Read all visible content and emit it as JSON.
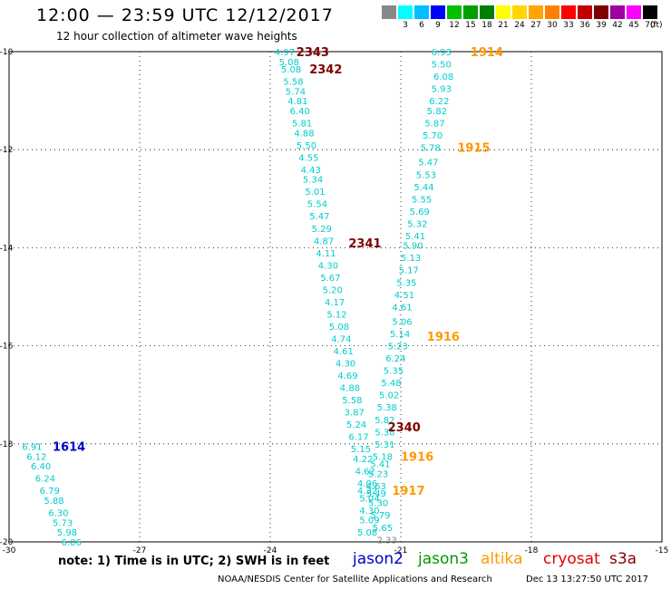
{
  "header": {
    "title": "12:00 — 23:59 UTC 12/12/2017",
    "subtitle": "12 hour collection of altimeter wave heights"
  },
  "legend": {
    "unit": "(ft)",
    "bins": [
      {
        "label": "",
        "color": "#888888"
      },
      {
        "label": "3",
        "color": "#00ffff"
      },
      {
        "label": "6",
        "color": "#00bfff"
      },
      {
        "label": "9",
        "color": "#0000ff"
      },
      {
        "label": "12",
        "color": "#00c000"
      },
      {
        "label": "15",
        "color": "#00a000"
      },
      {
        "label": "18",
        "color": "#008000"
      },
      {
        "label": "21",
        "color": "#ffff00"
      },
      {
        "label": "24",
        "color": "#ffd700"
      },
      {
        "label": "27",
        "color": "#ffa500"
      },
      {
        "label": "30",
        "color": "#ff8000"
      },
      {
        "label": "33",
        "color": "#ff0000"
      },
      {
        "label": "36",
        "color": "#c00000"
      },
      {
        "label": "39",
        "color": "#800000"
      },
      {
        "label": "42",
        "color": "#a000a0"
      },
      {
        "label": "45",
        "color": "#ff00ff"
      },
      {
        "label": "70",
        "color": "#000000"
      }
    ]
  },
  "axes": {
    "lat_labels": [
      "-10",
      "-12",
      "-14",
      "-16",
      "-18",
      "-20"
    ],
    "lon_labels": [
      "-30",
      "-27",
      "-24",
      "-21",
      "-18",
      "-15"
    ],
    "grid": true
  },
  "footer": {
    "note": "note: 1) Time is in UTC; 2) SWH is in feet",
    "satellites": [
      {
        "name": "jason2",
        "color": "#0000cc"
      },
      {
        "name": "jason3",
        "color": "#009900"
      },
      {
        "name": "altika",
        "color": "#ff9900"
      },
      {
        "name": "cryosat",
        "color": "#dd0000"
      },
      {
        "name": "s3a",
        "color": "#880000"
      }
    ],
    "credit": "NOAA/NESDIS Center for Satellite Applications and Research",
    "timestamp": "Dec 13 13:27:50 UTC 2017"
  },
  "chart_data": {
    "type": "map",
    "xlim": [
      -30,
      -15
    ],
    "ylim": [
      -20,
      -10
    ],
    "track_labels": [
      {
        "text": "2343",
        "lon": -23.4,
        "lat": -10.0,
        "color": "#800000"
      },
      {
        "text": "2342",
        "lon": -23.1,
        "lat": -10.35,
        "color": "#800000"
      },
      {
        "text": "2341",
        "lon": -22.2,
        "lat": -13.9,
        "color": "#800000"
      },
      {
        "text": "2340",
        "lon": -21.3,
        "lat": -17.65,
        "color": "#800000"
      },
      {
        "text": "1914",
        "lon": -19.4,
        "lat": -10.0,
        "color": "#ff9900"
      },
      {
        "text": "1915",
        "lon": -19.7,
        "lat": -11.95,
        "color": "#ff9900"
      },
      {
        "text": "1916",
        "lon": -20.4,
        "lat": -15.8,
        "color": "#ff9900"
      },
      {
        "text": "1916",
        "lon": -21.0,
        "lat": -18.25,
        "color": "#ff9900"
      },
      {
        "text": "1917",
        "lon": -21.2,
        "lat": -18.95,
        "color": "#ff9900"
      },
      {
        "text": "1614",
        "lon": -29.0,
        "lat": -18.05,
        "color": "#0000cc"
      }
    ],
    "points": [
      {
        "v": "4.97",
        "lon": -23.9,
        "lat": -10.0,
        "color": "#00cccc"
      },
      {
        "v": "5.08",
        "lon": -23.8,
        "lat": -10.2,
        "color": "#00cccc"
      },
      {
        "v": "5.08",
        "lon": -23.75,
        "lat": -10.35,
        "color": "#00cccc"
      },
      {
        "v": "5.58",
        "lon": -23.7,
        "lat": -10.6,
        "color": "#00cccc"
      },
      {
        "v": "5.74",
        "lon": -23.65,
        "lat": -10.8,
        "color": "#00cccc"
      },
      {
        "v": "4.81",
        "lon": -23.6,
        "lat": -11.0,
        "color": "#00cccc"
      },
      {
        "v": "6.40",
        "lon": -23.55,
        "lat": -11.2,
        "color": "#00cccc"
      },
      {
        "v": "5.81",
        "lon": -23.5,
        "lat": -11.45,
        "color": "#00cccc"
      },
      {
        "v": "4.88",
        "lon": -23.45,
        "lat": -11.65,
        "color": "#00cccc"
      },
      {
        "v": "5.50",
        "lon": -23.4,
        "lat": -11.9,
        "color": "#00cccc"
      },
      {
        "v": "4.55",
        "lon": -23.35,
        "lat": -12.15,
        "color": "#00cccc"
      },
      {
        "v": "4.43",
        "lon": -23.3,
        "lat": -12.4,
        "color": "#00cccc"
      },
      {
        "v": "5.34",
        "lon": -23.25,
        "lat": -12.6,
        "color": "#00cccc"
      },
      {
        "v": "5.01",
        "lon": -23.2,
        "lat": -12.85,
        "color": "#00cccc"
      },
      {
        "v": "5.54",
        "lon": -23.15,
        "lat": -13.1,
        "color": "#00cccc"
      },
      {
        "v": "5.47",
        "lon": -23.1,
        "lat": -13.35,
        "color": "#00cccc"
      },
      {
        "v": "5.29",
        "lon": -23.05,
        "lat": -13.6,
        "color": "#00cccc"
      },
      {
        "v": "4.87",
        "lon": -23.0,
        "lat": -13.85,
        "color": "#00cccc"
      },
      {
        "v": "4.11",
        "lon": -22.95,
        "lat": -14.1,
        "color": "#00cccc"
      },
      {
        "v": "4.30",
        "lon": -22.9,
        "lat": -14.35,
        "color": "#00cccc"
      },
      {
        "v": "5.67",
        "lon": -22.85,
        "lat": -14.6,
        "color": "#00cccc"
      },
      {
        "v": "5.20",
        "lon": -22.8,
        "lat": -14.85,
        "color": "#00cccc"
      },
      {
        "v": "4.17",
        "lon": -22.75,
        "lat": -15.1,
        "color": "#00cccc"
      },
      {
        "v": "5.12",
        "lon": -22.7,
        "lat": -15.35,
        "color": "#00cccc"
      },
      {
        "v": "5.08",
        "lon": -22.65,
        "lat": -15.6,
        "color": "#00cccc"
      },
      {
        "v": "4.74",
        "lon": -22.6,
        "lat": -15.85,
        "color": "#00cccc"
      },
      {
        "v": "4.61",
        "lon": -22.55,
        "lat": -16.1,
        "color": "#00cccc"
      },
      {
        "v": "4.30",
        "lon": -22.5,
        "lat": -16.35,
        "color": "#00cccc"
      },
      {
        "v": "4.69",
        "lon": -22.45,
        "lat": -16.6,
        "color": "#00cccc"
      },
      {
        "v": "4.88",
        "lon": -22.4,
        "lat": -16.85,
        "color": "#00cccc"
      },
      {
        "v": "5.58",
        "lon": -22.35,
        "lat": -17.1,
        "color": "#00cccc"
      },
      {
        "v": "3.87",
        "lon": -22.3,
        "lat": -17.35,
        "color": "#00cccc"
      },
      {
        "v": "5.24",
        "lon": -22.25,
        "lat": -17.6,
        "color": "#00cccc"
      },
      {
        "v": "6.17",
        "lon": -22.2,
        "lat": -17.85,
        "color": "#00cccc"
      },
      {
        "v": "5.15",
        "lon": -22.15,
        "lat": -18.1,
        "color": "#00cccc"
      },
      {
        "v": "4.22",
        "lon": -22.1,
        "lat": -18.3,
        "color": "#00cccc"
      },
      {
        "v": "4.62",
        "lon": -22.05,
        "lat": -18.55,
        "color": "#00cccc"
      },
      {
        "v": "4.06",
        "lon": -22.0,
        "lat": -18.8,
        "color": "#00cccc"
      },
      {
        "v": "4.32",
        "lon": -22.0,
        "lat": -18.95,
        "color": "#00cccc"
      },
      {
        "v": "5.04",
        "lon": -21.95,
        "lat": -19.1,
        "color": "#00cccc"
      },
      {
        "v": "4.30",
        "lon": -21.95,
        "lat": -19.35,
        "color": "#00cccc"
      },
      {
        "v": "5.09",
        "lon": -21.95,
        "lat": -19.55,
        "color": "#00cccc"
      },
      {
        "v": "5.08",
        "lon": -22.0,
        "lat": -19.8,
        "color": "#00cccc"
      },
      {
        "v": "6.93",
        "lon": -20.3,
        "lat": -10.0,
        "color": "#00cccc"
      },
      {
        "v": "5.50",
        "lon": -20.3,
        "lat": -10.25,
        "color": "#00cccc"
      },
      {
        "v": "6.08",
        "lon": -20.25,
        "lat": -10.5,
        "color": "#00cccc"
      },
      {
        "v": "5.93",
        "lon": -20.3,
        "lat": -10.75,
        "color": "#00cccc"
      },
      {
        "v": "6.22",
        "lon": -20.35,
        "lat": -11.0,
        "color": "#00cccc"
      },
      {
        "v": "5.82",
        "lon": -20.4,
        "lat": -11.2,
        "color": "#00cccc"
      },
      {
        "v": "5.87",
        "lon": -20.45,
        "lat": -11.45,
        "color": "#00cccc"
      },
      {
        "v": "5.70",
        "lon": -20.5,
        "lat": -11.7,
        "color": "#00cccc"
      },
      {
        "v": "5.78",
        "lon": -20.55,
        "lat": -11.95,
        "color": "#00cccc"
      },
      {
        "v": "5.47",
        "lon": -20.6,
        "lat": -12.25,
        "color": "#00cccc"
      },
      {
        "v": "5.53",
        "lon": -20.65,
        "lat": -12.5,
        "color": "#00cccc"
      },
      {
        "v": "5.44",
        "lon": -20.7,
        "lat": -12.75,
        "color": "#00cccc"
      },
      {
        "v": "5.55",
        "lon": -20.75,
        "lat": -13.0,
        "color": "#00cccc"
      },
      {
        "v": "5.69",
        "lon": -20.8,
        "lat": -13.25,
        "color": "#00cccc"
      },
      {
        "v": "5.32",
        "lon": -20.85,
        "lat": -13.5,
        "color": "#00cccc"
      },
      {
        "v": "5.41",
        "lon": -20.9,
        "lat": -13.75,
        "color": "#00cccc"
      },
      {
        "v": "5.90",
        "lon": -20.95,
        "lat": -13.95,
        "color": "#00cccc"
      },
      {
        "v": "5.13",
        "lon": -21.0,
        "lat": -14.2,
        "color": "#00cccc"
      },
      {
        "v": "5.17",
        "lon": -21.05,
        "lat": -14.45,
        "color": "#00cccc"
      },
      {
        "v": "5.35",
        "lon": -21.1,
        "lat": -14.7,
        "color": "#00cccc"
      },
      {
        "v": "4.51",
        "lon": -21.15,
        "lat": -14.95,
        "color": "#00cccc"
      },
      {
        "v": "4.61",
        "lon": -21.2,
        "lat": -15.2,
        "color": "#00cccc"
      },
      {
        "v": "5.06",
        "lon": -21.2,
        "lat": -15.5,
        "color": "#00cccc"
      },
      {
        "v": "5.14",
        "lon": -21.25,
        "lat": -15.75,
        "color": "#00cccc"
      },
      {
        "v": "5.23",
        "lon": -21.3,
        "lat": -16.0,
        "color": "#00cccc"
      },
      {
        "v": "6.24",
        "lon": -21.35,
        "lat": -16.25,
        "color": "#00cccc"
      },
      {
        "v": "5.35",
        "lon": -21.4,
        "lat": -16.5,
        "color": "#00cccc"
      },
      {
        "v": "5.48",
        "lon": -21.45,
        "lat": -16.75,
        "color": "#00cccc"
      },
      {
        "v": "5.02",
        "lon": -21.5,
        "lat": -17.0,
        "color": "#00cccc"
      },
      {
        "v": "5.38",
        "lon": -21.55,
        "lat": -17.25,
        "color": "#00cccc"
      },
      {
        "v": "5.82",
        "lon": -21.6,
        "lat": -17.5,
        "color": "#00cccc"
      },
      {
        "v": "5.38",
        "lon": -21.6,
        "lat": -17.75,
        "color": "#00cccc"
      },
      {
        "v": "5.31",
        "lon": -21.6,
        "lat": -18.0,
        "color": "#00cccc"
      },
      {
        "v": "5.18",
        "lon": -21.65,
        "lat": -18.25,
        "color": "#00cccc"
      },
      {
        "v": "5.41",
        "lon": -21.7,
        "lat": -18.4,
        "color": "#00cccc"
      },
      {
        "v": "5.23",
        "lon": -21.75,
        "lat": -18.6,
        "color": "#00cccc"
      },
      {
        "v": "4.63",
        "lon": -21.8,
        "lat": -18.85,
        "color": "#00cccc"
      },
      {
        "v": "5.49",
        "lon": -21.8,
        "lat": -19.0,
        "color": "#00cccc"
      },
      {
        "v": "5.30",
        "lon": -21.75,
        "lat": -19.2,
        "color": "#00cccc"
      },
      {
        "v": "5.79",
        "lon": -21.7,
        "lat": -19.45,
        "color": "#00cccc"
      },
      {
        "v": "5.65",
        "lon": -21.65,
        "lat": -19.7,
        "color": "#00cccc"
      },
      {
        "v": "2.33",
        "lon": -21.55,
        "lat": -19.95,
        "color": "#888888"
      },
      {
        "v": "6.91",
        "lon": -29.7,
        "lat": -18.05,
        "color": "#00cccc"
      },
      {
        "v": "6.12",
        "lon": -29.6,
        "lat": -18.25,
        "color": "#00cccc"
      },
      {
        "v": "6.40",
        "lon": -29.5,
        "lat": -18.45,
        "color": "#00cccc"
      },
      {
        "v": "6.24",
        "lon": -29.4,
        "lat": -18.7,
        "color": "#00cccc"
      },
      {
        "v": "6.79",
        "lon": -29.3,
        "lat": -18.95,
        "color": "#00cccc"
      },
      {
        "v": "5.88",
        "lon": -29.2,
        "lat": -19.15,
        "color": "#00cccc"
      },
      {
        "v": "6.30",
        "lon": -29.1,
        "lat": -19.4,
        "color": "#00cccc"
      },
      {
        "v": "5.73",
        "lon": -29.0,
        "lat": -19.6,
        "color": "#00cccc"
      },
      {
        "v": "5.98",
        "lon": -28.9,
        "lat": -19.8,
        "color": "#00cccc"
      },
      {
        "v": "6.06",
        "lon": -28.8,
        "lat": -20.0,
        "color": "#00cccc"
      }
    ]
  }
}
